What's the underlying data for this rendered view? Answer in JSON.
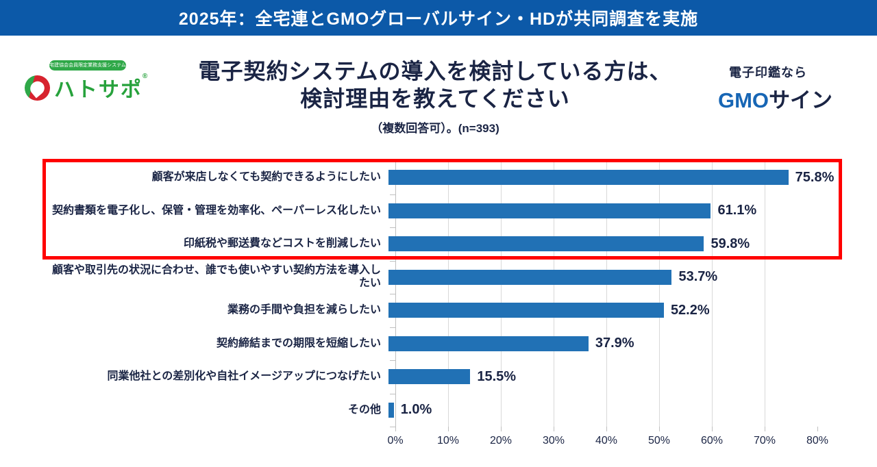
{
  "banner": {
    "text": "2025年：全宅連とGMOグローバルサイン・HDが共同調査を実施",
    "bg_color": "#0C59A8"
  },
  "header": {
    "hatosapo_logo": {
      "tagline": "宅建協会会員限定業務支援システム",
      "name": "ハトサポ",
      "reg_mark": "®",
      "green": "#27A23C"
    },
    "title_line1": "電子契約システムの導入を検討している方は、",
    "title_line2": "検討理由を教えてください",
    "subtitle": "（複数回答可）。(n=393)",
    "gmosign_logo": {
      "tagline": "電子印鑑なら",
      "name_gmo": "GMO",
      "name_sign": "サイン",
      "blue": "#1766B5",
      "navy": "#1A2444"
    }
  },
  "chart_data": {
    "type": "bar",
    "orientation": "horizontal",
    "title": "電子契約システムの導入を検討している方は、検討理由を教えてください",
    "subtitle": "（複数回答可）。(n=393)",
    "n": 393,
    "categories": [
      "顧客が来店しなくても契約できるようにしたい",
      "契約書類を電子化し、保管・管理を効率化、ペーパーレス化したい",
      "印紙税や郵送費などコストを削減したい",
      "顧客や取引先の状況に合わせ、誰でも使いやすい契約方法を導入したい",
      "業務の手間や負担を減らしたい",
      "契約締結までの期限を短縮したい",
      "同業他社との差別化や自社イメージアップにつなげたい",
      "その他"
    ],
    "values": [
      75.8,
      61.1,
      59.8,
      53.7,
      52.2,
      37.9,
      15.5,
      1.0
    ],
    "value_labels": [
      "75.8%",
      "61.1%",
      "59.8%",
      "53.7%",
      "52.2%",
      "37.9%",
      "15.5%",
      "1.0%"
    ],
    "x_ticks": [
      "0%",
      "10%",
      "20%",
      "30%",
      "40%",
      "50%",
      "60%",
      "70%",
      "80%"
    ],
    "xlim": [
      0,
      80
    ],
    "grid": true,
    "bar_color": "#2171B5",
    "gridline_color": "#D9D9D9",
    "highlight_box": {
      "rows": [
        0,
        1,
        2
      ],
      "border_color": "#FF0000"
    }
  }
}
